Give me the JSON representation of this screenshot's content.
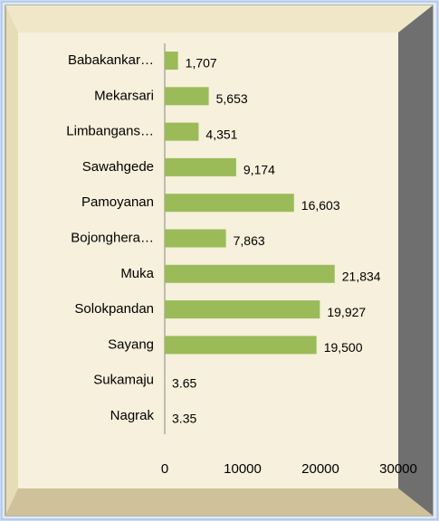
{
  "chart_data": {
    "type": "bar",
    "orientation": "horizontal",
    "categories": [
      "Babakankar…",
      "Mekarsari",
      "Limbangans…",
      "Sawahgede",
      "Pamoyanan",
      "Bojonghera…",
      "Muka",
      "Solokpandan",
      "Sayang",
      "Sukamaju",
      "Nagrak"
    ],
    "values": [
      1707,
      5653,
      4351,
      9174,
      16603,
      7863,
      21834,
      19927,
      19500,
      3.65,
      3.35
    ],
    "value_labels": [
      "1,707",
      "5,653",
      "4,351",
      "9,174",
      "16,603",
      "7,863",
      "21,834",
      "19,927",
      "19,500",
      "3.65",
      "3.35"
    ],
    "color": "#9bbb59",
    "xlim": [
      0,
      30000
    ],
    "xticks": [
      0,
      10000,
      20000,
      30000
    ]
  }
}
